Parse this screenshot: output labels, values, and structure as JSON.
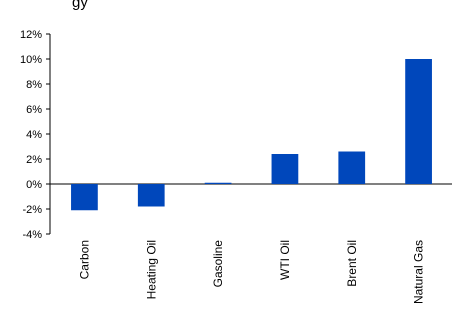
{
  "header": {
    "title_fragment": "gy"
  },
  "chart_data": {
    "type": "bar",
    "title": "",
    "xlabel": "",
    "ylabel": "",
    "categories": [
      "Carbon",
      "Heating Oil",
      "Gasoline",
      "WTI Oil",
      "Brent Oil",
      "Natural Gas"
    ],
    "values": [
      -2.1,
      -1.8,
      0.1,
      2.4,
      2.6,
      10.0
    ],
    "ylim": [
      -4,
      12
    ],
    "y_ticks": [
      -4,
      -2,
      0,
      2,
      4,
      6,
      8,
      10,
      12
    ],
    "y_tick_labels": [
      "-4%",
      "-2%",
      "0%",
      "2%",
      "4%",
      "6%",
      "8%",
      "10%",
      "12%"
    ],
    "grid": false,
    "legend": "none",
    "bar_color": "#0047BB"
  }
}
